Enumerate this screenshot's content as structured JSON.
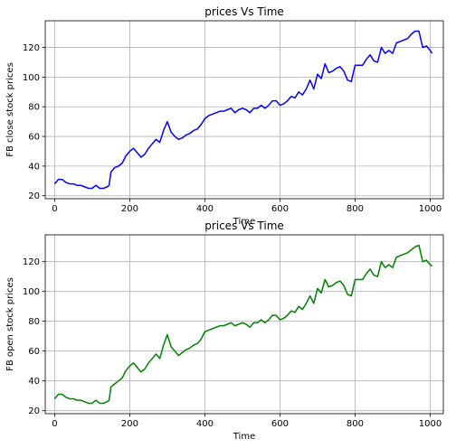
{
  "chart_data": [
    {
      "type": "line",
      "title": "prices Vs Time",
      "xlabel": "Time",
      "ylabel": "FB close stock prices",
      "xlim": [
        -25,
        1035
      ],
      "ylim": [
        18,
        138
      ],
      "xticks": [
        0,
        200,
        400,
        600,
        800,
        1000
      ],
      "yticks": [
        20,
        40,
        60,
        80,
        100,
        120
      ],
      "grid": true,
      "series": [
        {
          "color": "#0000ff",
          "x": [
            0,
            10,
            20,
            30,
            40,
            50,
            60,
            70,
            80,
            90,
            100,
            110,
            120,
            130,
            140,
            145,
            150,
            160,
            170,
            180,
            190,
            200,
            210,
            220,
            230,
            240,
            250,
            260,
            270,
            280,
            290,
            300,
            310,
            320,
            330,
            340,
            350,
            360,
            370,
            380,
            390,
            400,
            410,
            420,
            430,
            440,
            450,
            460,
            470,
            480,
            490,
            500,
            510,
            520,
            530,
            540,
            550,
            560,
            570,
            580,
            590,
            600,
            610,
            620,
            630,
            640,
            650,
            660,
            670,
            680,
            690,
            700,
            710,
            720,
            730,
            740,
            750,
            760,
            770,
            780,
            790,
            800,
            810,
            820,
            830,
            840,
            850,
            860,
            870,
            880,
            890,
            900,
            910,
            920,
            930,
            940,
            950,
            960,
            970,
            980,
            990,
            1000,
            1005
          ],
          "y": [
            28,
            31,
            31,
            29,
            28,
            28,
            27,
            27,
            26,
            25,
            25,
            27,
            25,
            25,
            26,
            27,
            36,
            39,
            40,
            42,
            47,
            50,
            52,
            49,
            46,
            48,
            52,
            55,
            58,
            56,
            64,
            70,
            63,
            60,
            58,
            59,
            61,
            62,
            64,
            65,
            68,
            72,
            74,
            75,
            76,
            77,
            77,
            78,
            79,
            76,
            78,
            79,
            78,
            76,
            79,
            79,
            81,
            79,
            81,
            84,
            84,
            81,
            82,
            84,
            87,
            86,
            90,
            88,
            92,
            98,
            92,
            102,
            99,
            109,
            103,
            104,
            106,
            107,
            104,
            98,
            97,
            108,
            108,
            108,
            112,
            115,
            111,
            110,
            120,
            116,
            118,
            116,
            123,
            124,
            125,
            126,
            129,
            131,
            131,
            120,
            121,
            118,
            116
          ]
        }
      ]
    },
    {
      "type": "line",
      "title": "prices Vs Time",
      "xlabel": "Time",
      "ylabel": "FB open stock prices",
      "xlim": [
        -25,
        1035
      ],
      "ylim": [
        18,
        138
      ],
      "xticks": [
        0,
        200,
        400,
        600,
        800,
        1000
      ],
      "yticks": [
        20,
        40,
        60,
        80,
        100,
        120
      ],
      "grid": true,
      "series": [
        {
          "color": "#008000",
          "x": [
            0,
            10,
            20,
            30,
            40,
            50,
            60,
            70,
            80,
            90,
            100,
            110,
            120,
            130,
            140,
            145,
            150,
            160,
            170,
            180,
            190,
            200,
            210,
            220,
            230,
            240,
            250,
            260,
            270,
            280,
            290,
            300,
            310,
            320,
            330,
            340,
            350,
            360,
            370,
            380,
            390,
            400,
            410,
            420,
            430,
            440,
            450,
            460,
            470,
            480,
            490,
            500,
            510,
            520,
            530,
            540,
            550,
            560,
            570,
            580,
            590,
            600,
            610,
            620,
            630,
            640,
            650,
            660,
            670,
            680,
            690,
            700,
            710,
            720,
            730,
            740,
            750,
            760,
            770,
            780,
            790,
            800,
            810,
            820,
            830,
            840,
            850,
            860,
            870,
            880,
            890,
            900,
            910,
            920,
            930,
            940,
            950,
            960,
            970,
            980,
            990,
            1000,
            1005
          ],
          "y": [
            28,
            31,
            31,
            29,
            28,
            28,
            27,
            27,
            26,
            25,
            25,
            27,
            25,
            25,
            26,
            27,
            36,
            38,
            40,
            42,
            47,
            50,
            52,
            49,
            46,
            48,
            52,
            55,
            58,
            55,
            64,
            71,
            63,
            60,
            57,
            59,
            61,
            62,
            64,
            65,
            68,
            73,
            74,
            75,
            76,
            77,
            77,
            78,
            79,
            77,
            78,
            79,
            78,
            76,
            79,
            79,
            81,
            79,
            81,
            84,
            84,
            81,
            82,
            84,
            87,
            86,
            90,
            88,
            92,
            97,
            92,
            102,
            99,
            108,
            103,
            104,
            106,
            107,
            104,
            98,
            97,
            108,
            108,
            108,
            112,
            115,
            111,
            110,
            120,
            116,
            118,
            116,
            123,
            124,
            125,
            126,
            128,
            130,
            131,
            120,
            121,
            118,
            117
          ]
        }
      ]
    }
  ]
}
